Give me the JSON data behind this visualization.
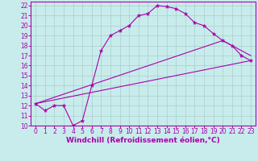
{
  "bg_color": "#c8ecec",
  "line_color": "#aa00aa",
  "grid_color": "#aacccc",
  "xlabel": "Windchill (Refroidissement éolien,°C)",
  "xlabel_fontsize": 6.5,
  "xtick_fontsize": 5.5,
  "ytick_fontsize": 5.5,
  "xlim": [
    -0.5,
    23.5
  ],
  "ylim": [
    10,
    22.4
  ],
  "yticks": [
    10,
    11,
    12,
    13,
    14,
    15,
    16,
    17,
    18,
    19,
    20,
    21,
    22
  ],
  "xticks": [
    0,
    1,
    2,
    3,
    4,
    5,
    6,
    7,
    8,
    9,
    10,
    11,
    12,
    13,
    14,
    15,
    16,
    17,
    18,
    19,
    20,
    21,
    22,
    23
  ],
  "curve1_x": [
    0,
    1,
    2,
    3,
    4,
    5,
    6,
    7,
    8,
    9,
    10,
    11,
    12,
    13,
    14,
    15,
    16,
    17,
    18,
    19,
    20,
    21,
    22,
    23
  ],
  "curve1_y": [
    12.2,
    11.5,
    12.0,
    12.0,
    10.0,
    10.5,
    14.0,
    17.5,
    19.0,
    19.5,
    20.0,
    21.0,
    21.2,
    22.0,
    21.9,
    21.7,
    21.2,
    20.3,
    20.0,
    19.2,
    18.5,
    18.0,
    17.0,
    16.5
  ],
  "line2_x": [
    0,
    23
  ],
  "line2_y": [
    12.2,
    16.5
  ],
  "line3_x": [
    0,
    20,
    23
  ],
  "line3_y": [
    12.2,
    18.5,
    17.0
  ]
}
